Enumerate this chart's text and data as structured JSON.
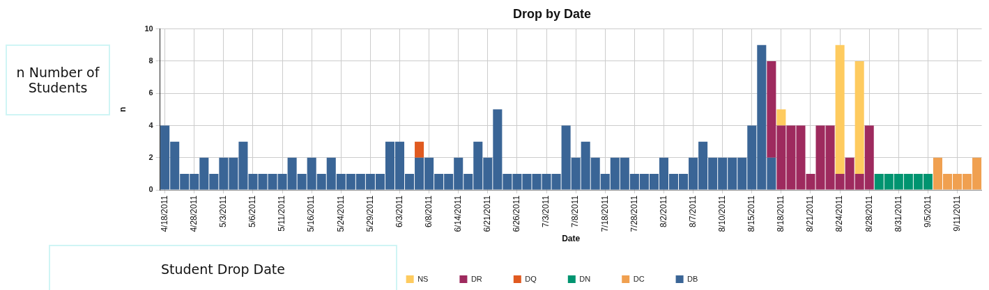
{
  "chart_data": {
    "type": "bar",
    "title": "Drop by Date",
    "xlabel": "Date",
    "ylabel": "n",
    "stacked": true,
    "grid": true,
    "legend": "bottom",
    "categories": [
      "4/18/2011",
      null,
      null,
      "4/28/2011",
      null,
      null,
      "5/3/2011",
      null,
      null,
      "5/6/2011",
      null,
      null,
      "5/11/2011",
      null,
      null,
      "5/16/2011",
      null,
      null,
      "5/24/2011",
      null,
      null,
      "5/29/2011",
      null,
      null,
      "6/3/2011",
      null,
      null,
      "6/8/2011",
      null,
      null,
      "6/14/2011",
      null,
      null,
      "6/21/2011",
      null,
      null,
      "6/26/2011",
      null,
      null,
      "7/3/2011",
      null,
      null,
      "7/8/2011",
      null,
      null,
      "7/18/2011",
      null,
      null,
      "7/28/2011",
      null,
      null,
      "8/2/2011",
      null,
      null,
      "8/7/2011",
      null,
      null,
      "8/10/2011",
      null,
      null,
      "8/15/2011",
      null,
      null,
      "8/18/2011",
      null,
      null,
      "8/21/2011",
      null,
      null,
      "8/24/2011",
      null,
      null,
      "8/28/2011",
      null,
      null,
      "8/31/2011",
      null,
      null,
      "9/5/2011",
      null,
      null,
      "9/11/2011",
      null,
      null
    ],
    "ylim": [
      0,
      10
    ],
    "yticks": [
      0,
      2,
      4,
      6,
      8,
      10
    ],
    "series": [
      {
        "name": "DB",
        "color": "#3a6596",
        "values": [
          4,
          3,
          1,
          1,
          2,
          1,
          2,
          2,
          3,
          1,
          1,
          1,
          1,
          2,
          1,
          2,
          1,
          2,
          1,
          1,
          1,
          1,
          1,
          3,
          3,
          1,
          2,
          2,
          1,
          1,
          2,
          1,
          3,
          2,
          5,
          1,
          1,
          1,
          1,
          1,
          1,
          4,
          2,
          3,
          2,
          1,
          2,
          2,
          1,
          1,
          1,
          2,
          1,
          1,
          2,
          3,
          2,
          2,
          2,
          2,
          4,
          9,
          2,
          null,
          null,
          null,
          null,
          null,
          null,
          null,
          null,
          null,
          null,
          null,
          null,
          null,
          null,
          null,
          null,
          null,
          null,
          null,
          null,
          null
        ]
      },
      {
        "name": "DC",
        "color": "#f0a050",
        "values": [
          null,
          null,
          null,
          null,
          null,
          null,
          null,
          null,
          null,
          null,
          null,
          null,
          null,
          null,
          null,
          null,
          null,
          null,
          null,
          null,
          null,
          null,
          null,
          null,
          null,
          null,
          null,
          null,
          null,
          null,
          null,
          null,
          null,
          null,
          null,
          null,
          null,
          null,
          null,
          null,
          null,
          null,
          null,
          null,
          null,
          null,
          null,
          null,
          null,
          null,
          null,
          null,
          null,
          null,
          null,
          null,
          null,
          null,
          null,
          null,
          null,
          null,
          null,
          null,
          null,
          null,
          null,
          null,
          null,
          null,
          null,
          null,
          null,
          null,
          null,
          null,
          null,
          null,
          null,
          2,
          1,
          1,
          1,
          2
        ]
      },
      {
        "name": "DN",
        "color": "#009470",
        "values": [
          null,
          null,
          null,
          null,
          null,
          null,
          null,
          null,
          null,
          null,
          null,
          null,
          null,
          null,
          null,
          null,
          null,
          null,
          null,
          null,
          null,
          null,
          null,
          null,
          null,
          null,
          null,
          null,
          null,
          null,
          null,
          null,
          null,
          null,
          null,
          null,
          null,
          null,
          null,
          null,
          null,
          null,
          null,
          null,
          null,
          null,
          null,
          null,
          null,
          null,
          null,
          null,
          null,
          null,
          null,
          null,
          null,
          null,
          null,
          null,
          null,
          null,
          null,
          null,
          null,
          null,
          null,
          null,
          null,
          null,
          null,
          null,
          null,
          1,
          1,
          1,
          1,
          1,
          1,
          null,
          null,
          null,
          null,
          null
        ]
      },
      {
        "name": "DQ",
        "color": "#e05a20",
        "values": [
          null,
          null,
          null,
          null,
          null,
          null,
          null,
          null,
          null,
          null,
          null,
          null,
          null,
          null,
          null,
          null,
          null,
          null,
          null,
          null,
          null,
          null,
          null,
          null,
          null,
          null,
          1,
          null,
          null,
          null,
          null,
          null,
          null,
          null,
          null,
          null,
          null,
          null,
          null,
          null,
          null,
          null,
          null,
          null,
          null,
          null,
          null,
          null,
          null,
          null,
          null,
          null,
          null,
          null,
          null,
          null,
          null,
          null,
          null,
          null,
          null,
          null,
          null,
          null,
          null,
          null,
          null,
          null,
          null,
          null,
          null,
          null,
          null,
          null,
          null,
          null,
          null,
          null,
          null,
          null,
          null,
          null,
          null,
          null
        ]
      },
      {
        "name": "DR",
        "color": "#9e2a5e",
        "values": [
          null,
          null,
          null,
          null,
          null,
          null,
          null,
          null,
          null,
          null,
          null,
          null,
          null,
          null,
          null,
          null,
          null,
          null,
          null,
          null,
          null,
          null,
          null,
          null,
          null,
          null,
          null,
          null,
          null,
          null,
          null,
          null,
          null,
          null,
          null,
          null,
          null,
          null,
          null,
          null,
          null,
          null,
          null,
          null,
          null,
          null,
          null,
          null,
          null,
          null,
          null,
          null,
          null,
          null,
          null,
          null,
          null,
          null,
          null,
          null,
          null,
          null,
          6,
          4,
          4,
          4,
          1,
          4,
          4,
          1,
          2,
          1,
          4,
          null,
          null,
          null,
          null,
          null,
          null,
          null,
          null,
          null,
          null,
          null
        ]
      },
      {
        "name": "NS",
        "color": "#fecb5f",
        "values": [
          null,
          null,
          null,
          null,
          null,
          null,
          null,
          null,
          null,
          null,
          null,
          null,
          null,
          null,
          null,
          null,
          null,
          null,
          null,
          null,
          null,
          null,
          null,
          null,
          null,
          null,
          null,
          null,
          null,
          null,
          null,
          null,
          null,
          null,
          null,
          null,
          null,
          null,
          null,
          null,
          null,
          null,
          null,
          null,
          null,
          null,
          null,
          null,
          null,
          null,
          null,
          null,
          null,
          null,
          null,
          null,
          null,
          null,
          null,
          null,
          null,
          null,
          null,
          1,
          null,
          null,
          null,
          null,
          null,
          8,
          null,
          7,
          null,
          null,
          null,
          null,
          null,
          null,
          null,
          null,
          null,
          null,
          null,
          null
        ]
      }
    ],
    "annotations": [
      "n Number of Students",
      "Student Drop Date"
    ]
  }
}
